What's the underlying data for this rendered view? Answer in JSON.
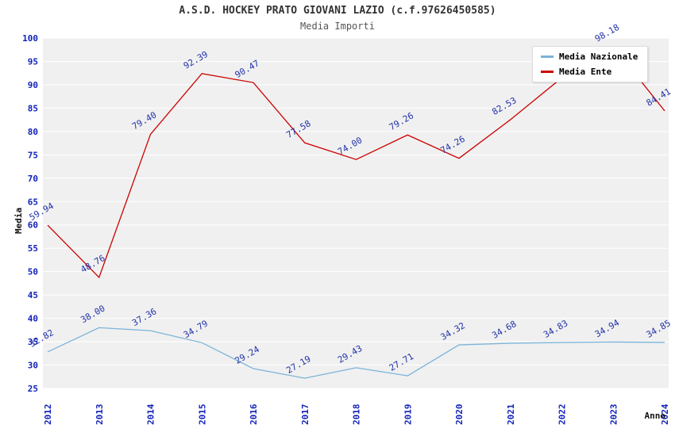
{
  "title": "A.S.D. HOCKEY PRATO GIOVANI LAZIO (c.f.97626450585)",
  "subtitle": "Media Importi",
  "chart_data": {
    "type": "line",
    "title": "A.S.D. HOCKEY PRATO GIOVANI LAZIO (c.f.97626450585)",
    "subtitle": "Media Importi",
    "xlabel": "Anno",
    "ylabel": "Media",
    "ylim": [
      25,
      100
    ],
    "ytick_step": 5,
    "grid": true,
    "legend_position": "top-right",
    "plot_bg": "#f0f0f0",
    "grid_color": "#ffffff",
    "tick_color": "#1122bb",
    "label_color": "#2233aa",
    "categories": [
      "2012",
      "2013",
      "2014",
      "2015",
      "2016",
      "2017",
      "2018",
      "2019",
      "2020",
      "2021",
      "2022",
      "2023",
      "2024"
    ],
    "series": [
      {
        "name": "Media Nazionale",
        "color": "#7ab4d8",
        "values": [
          32.82,
          38.0,
          37.36,
          34.79,
          29.24,
          27.19,
          29.43,
          27.71,
          34.32,
          34.68,
          34.83,
          34.94,
          34.85
        ]
      },
      {
        "name": "Media Ente",
        "color": "#cc0000",
        "values": [
          59.94,
          48.76,
          79.4,
          92.39,
          90.47,
          77.58,
          74.0,
          79.26,
          74.26,
          82.53,
          91.5,
          98.18,
          84.41
        ]
      }
    ]
  }
}
